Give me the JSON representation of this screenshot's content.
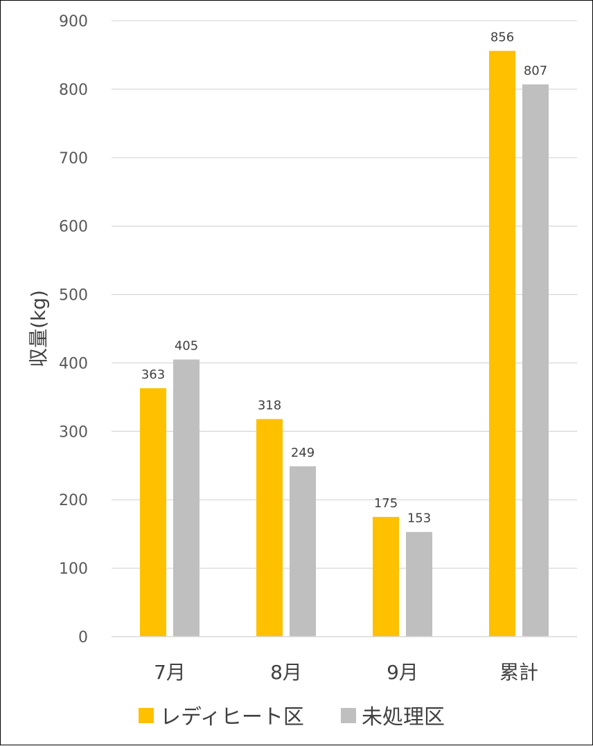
{
  "chart_data": {
    "type": "bar",
    "categories": [
      "7月",
      "8月",
      "9月",
      "累計"
    ],
    "series": [
      {
        "name": "レディヒート区",
        "color": "#FFC000",
        "values": [
          363,
          318,
          175,
          856
        ]
      },
      {
        "name": "未処理区",
        "color": "#BFBFBF",
        "values": [
          405,
          249,
          153,
          807
        ]
      }
    ],
    "ylabel": "収量(kg)",
    "xlabel": "",
    "ylim": [
      0,
      900
    ],
    "yticks": [
      0,
      100,
      200,
      300,
      400,
      500,
      600,
      700,
      800,
      900
    ],
    "grid": true,
    "grid_color": "#D9D9D9",
    "legend_position": "bottom"
  }
}
